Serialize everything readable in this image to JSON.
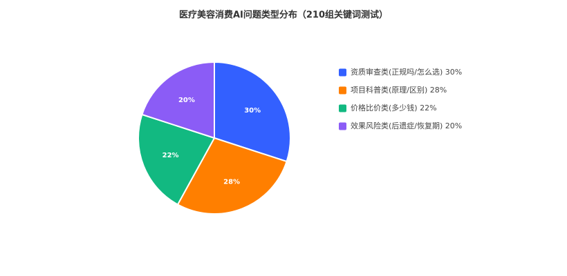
{
  "chart_data": {
    "type": "pie",
    "title": "医疗美容消费AI问题类型分布（210组关键词测试）",
    "categories": [
      "资质审查类(正规吗/怎么选) 30%",
      "项目科普类(原理/区别) 28%",
      "价格比价类(多少钱) 22%",
      "效果风险类(后遗症/恢复期) 20%"
    ],
    "values": [
      30,
      28,
      22,
      20
    ],
    "value_labels": [
      "30%",
      "28%",
      "22%",
      "20%"
    ],
    "colors": [
      "#3360ff",
      "#ff7f00",
      "#12b981",
      "#8b5cf6"
    ],
    "legend": "right"
  }
}
